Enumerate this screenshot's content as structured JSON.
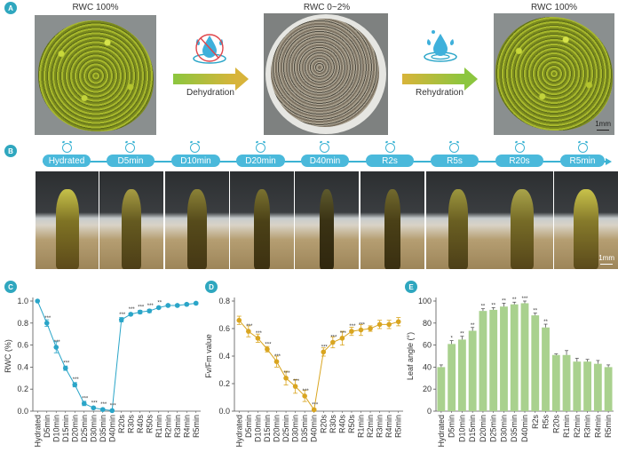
{
  "panels": {
    "A": {
      "badge": "A",
      "photos": [
        {
          "label": "RWC 100%",
          "state": "hydrated"
        },
        {
          "label": "RWC 0~2%",
          "state": "desiccated"
        },
        {
          "label": "RWC 100%",
          "state": "rehydrated"
        }
      ],
      "arrows": [
        {
          "label": "Dehydration",
          "icon": "no-water-icon",
          "gradient": [
            "#8cc63f",
            "#d8b43a"
          ]
        },
        {
          "label": "Rehydration",
          "icon": "water-drop-splash-icon",
          "gradient": [
            "#d8b43a",
            "#8cc63f"
          ]
        }
      ],
      "scale_bar": "1mm"
    },
    "B": {
      "badge": "B",
      "timepoints": [
        "Hydrated",
        "D5min",
        "D10min",
        "D20min",
        "D40min",
        "R2s",
        "R5s",
        "R20s",
        "R5min"
      ],
      "scale_bar": "1mm",
      "timeline_color": "#3cb3d3"
    },
    "C": {
      "badge": "C"
    },
    "D": {
      "badge": "D"
    },
    "E": {
      "badge": "E"
    }
  },
  "colors": {
    "dehydration_labels": "#f0a04b",
    "rehydration_labels": "#1fa67a",
    "rwc_series": "#2aa5c8",
    "fvfm_series": "#d9a520",
    "leaf_angle_bars": "#a9d18e",
    "badge": "#2fa7bf"
  },
  "chart_data": [
    {
      "panel": "C",
      "type": "line",
      "title": "",
      "xlabel": "",
      "ylabel": "RWC (%)",
      "ylim": [
        0,
        1.0
      ],
      "yticks": [
        "0.0",
        "0.2",
        "0.4",
        "0.6",
        "0.8",
        "1.0"
      ],
      "categories": [
        "Hydrated",
        "D5min",
        "D10min",
        "D15min",
        "D20min",
        "D25min",
        "D30min",
        "D35min",
        "D40min",
        "R20s",
        "R30s",
        "R40s",
        "R50s",
        "R1min",
        "R2min",
        "R3min",
        "R4min",
        "R5min"
      ],
      "values": [
        1.0,
        0.8,
        0.58,
        0.39,
        0.24,
        0.07,
        0.03,
        0.015,
        0.005,
        0.83,
        0.88,
        0.9,
        0.91,
        0.94,
        0.96,
        0.96,
        0.97,
        0.98
      ],
      "errors": [
        0.0,
        0.03,
        0.05,
        0.02,
        0.02,
        0.02,
        0.01,
        0.01,
        0.005,
        0.02,
        0.01,
        0.015,
        0.015,
        0.01,
        0.01,
        0.01,
        0.01,
        0.01
      ],
      "significance": [
        "",
        "***",
        "***",
        "***",
        "***",
        "***",
        "***",
        "***",
        "***",
        "***",
        "***",
        "***",
        "***",
        "**",
        "",
        "",
        "",
        ""
      ]
    },
    {
      "panel": "D",
      "type": "line",
      "title": "",
      "xlabel": "",
      "ylabel": "Fv/Fm value",
      "ylim": [
        0,
        0.8
      ],
      "yticks": [
        "0.0",
        "0.2",
        "0.4",
        "0.6",
        "0.8"
      ],
      "categories": [
        "Hydrated",
        "D5min",
        "D10min",
        "D15min",
        "D20min",
        "D25min",
        "D30min",
        "D35min",
        "D40min",
        "R20s",
        "R30s",
        "R40s",
        "R50s",
        "R1min",
        "R2min",
        "R3min",
        "R4min",
        "R5min"
      ],
      "values": [
        0.66,
        0.58,
        0.53,
        0.45,
        0.36,
        0.24,
        0.18,
        0.11,
        0.01,
        0.43,
        0.5,
        0.53,
        0.58,
        0.59,
        0.6,
        0.63,
        0.63,
        0.65
      ],
      "errors": [
        0.03,
        0.04,
        0.03,
        0.02,
        0.04,
        0.05,
        0.05,
        0.04,
        0.01,
        0.03,
        0.04,
        0.05,
        0.03,
        0.04,
        0.02,
        0.03,
        0.03,
        0.03
      ],
      "significance": [
        "",
        "***",
        "***",
        "***",
        "***",
        "***",
        "***",
        "***",
        "***",
        "***",
        "***",
        "***",
        "***",
        "***",
        "",
        "",
        "",
        ""
      ]
    },
    {
      "panel": "E",
      "type": "bar",
      "title": "",
      "xlabel": "",
      "ylabel": "Leaf angle (°)",
      "ylim": [
        0,
        100
      ],
      "yticks": [
        "0",
        "20",
        "40",
        "60",
        "80",
        "100"
      ],
      "categories": [
        "Hydrated",
        "D5min",
        "D10min",
        "D15min",
        "D20min",
        "D25min",
        "D30min",
        "D35min",
        "D40min",
        "R2s",
        "R5s",
        "R20s",
        "R1min",
        "R2min",
        "R3min",
        "R4min",
        "R5min"
      ],
      "values": [
        40,
        61,
        65,
        73,
        91,
        92,
        95,
        97,
        98,
        87,
        76,
        51,
        51,
        45,
        45,
        43,
        40
      ],
      "errors": [
        2,
        3,
        3,
        3,
        2,
        2,
        3,
        2,
        2,
        2,
        3,
        1,
        4,
        3,
        2,
        3,
        2
      ],
      "significance": [
        "",
        "*",
        "**",
        "**",
        "**",
        "**",
        "**",
        "**",
        "***",
        "**",
        "**",
        "",
        "",
        "",
        "",
        "",
        ""
      ]
    }
  ]
}
